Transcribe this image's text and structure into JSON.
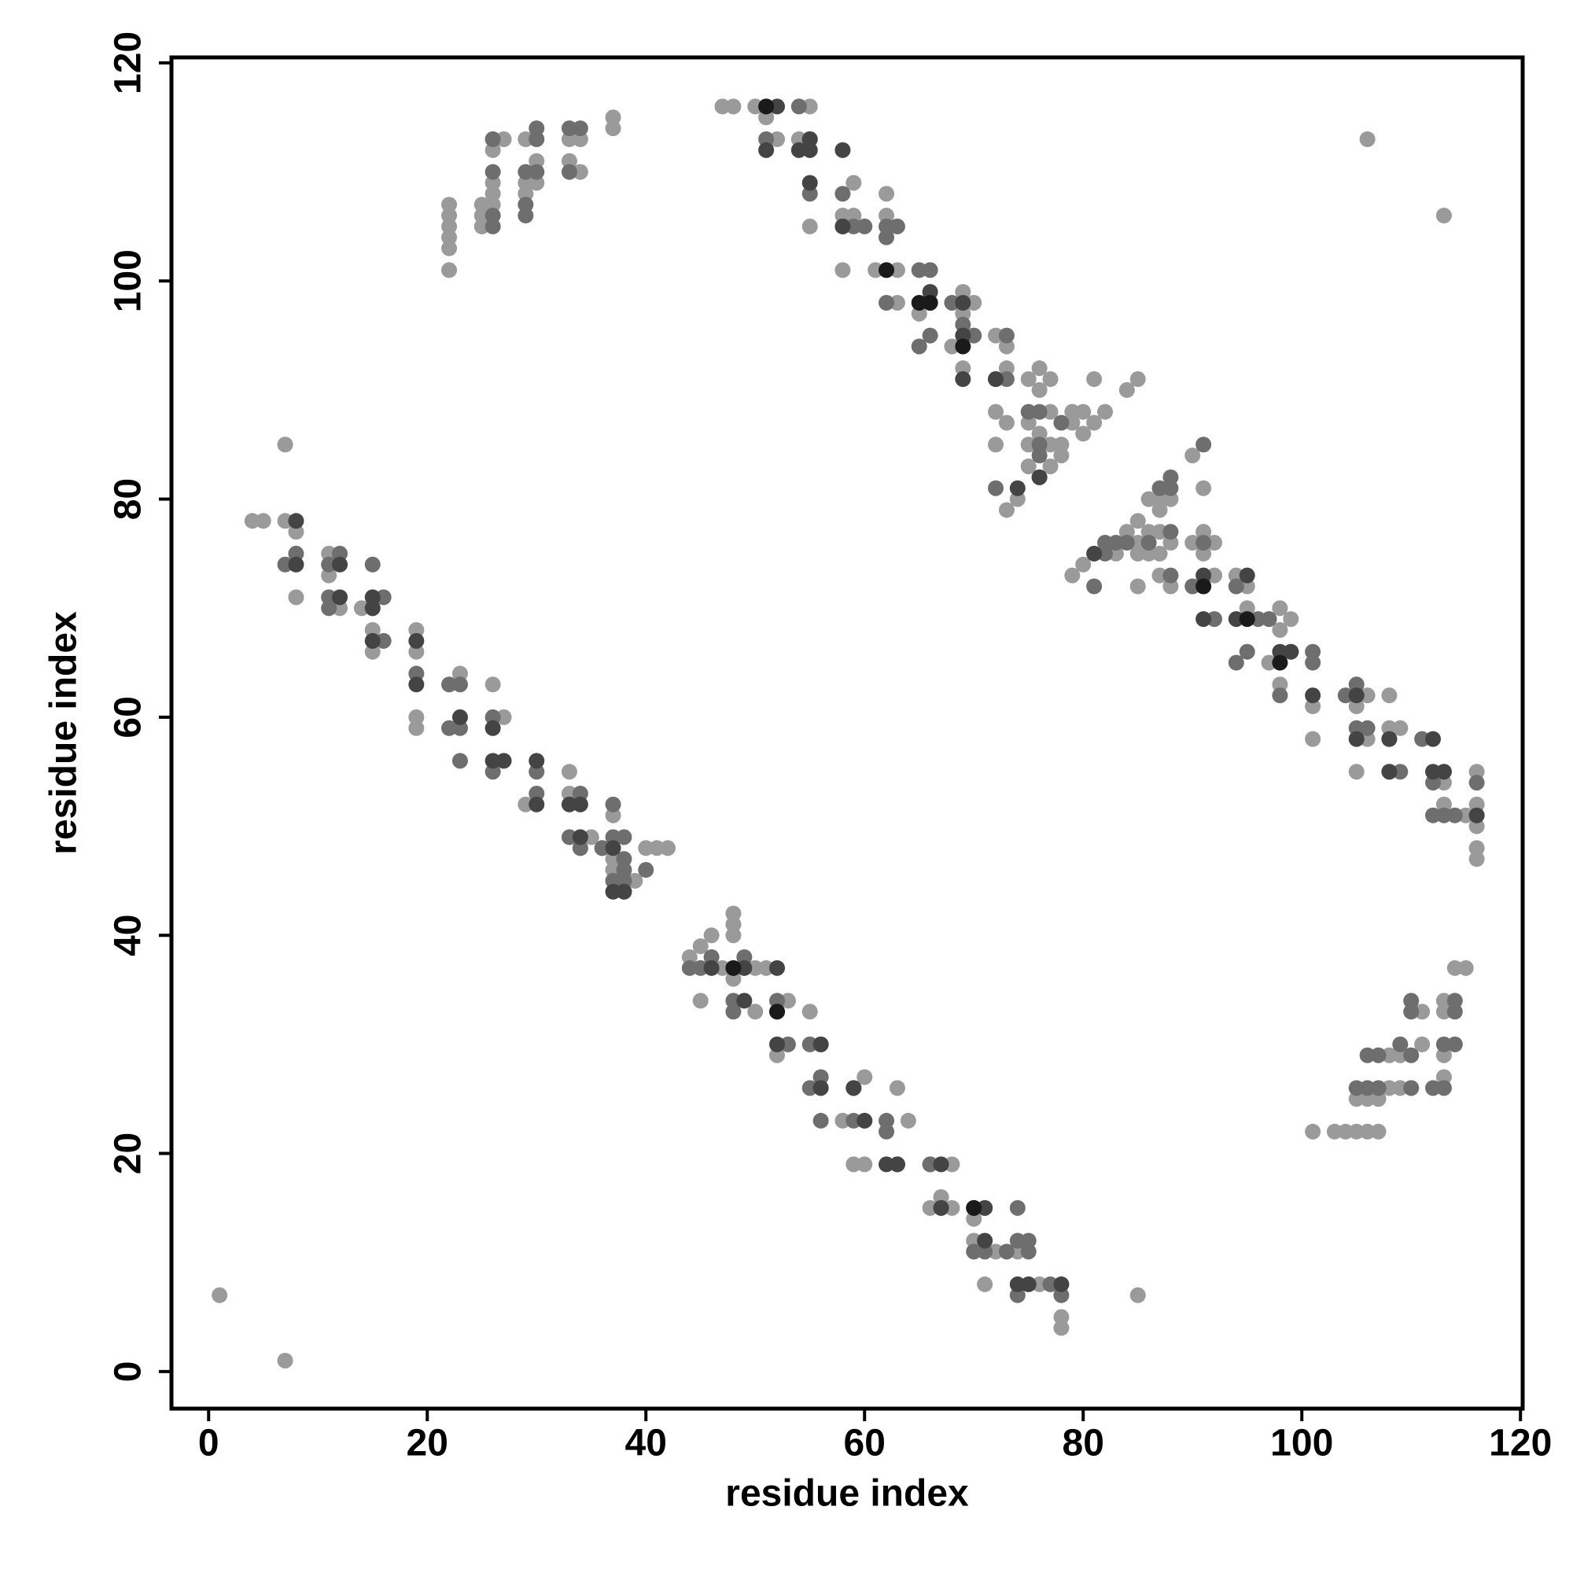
{
  "chart_data": {
    "type": "scatter",
    "xlabel": "residue index",
    "ylabel": "residue index",
    "xlim": [
      -3.4,
      120.2
    ],
    "ylim": [
      -3.4,
      120.5
    ],
    "xticks": [
      0,
      20,
      40,
      60,
      80,
      100,
      120
    ],
    "yticks": [
      0,
      20,
      40,
      60,
      80,
      100,
      120
    ],
    "series": [
      {
        "color": "#9a9a9a",
        "x": [
          4,
          5,
          7,
          7,
          8,
          8,
          11,
          11,
          12,
          14,
          19,
          19,
          19,
          19,
          23,
          26,
          27,
          29,
          33,
          33,
          34,
          35,
          36,
          37,
          37,
          37,
          38,
          39,
          40,
          41,
          42,
          15,
          15,
          22,
          22,
          22,
          22,
          22,
          22,
          25,
          25,
          25,
          26,
          26,
          26,
          26,
          27,
          29,
          29,
          29,
          30,
          30,
          33,
          33,
          34,
          34,
          37,
          37,
          26,
          47,
          48,
          50,
          51,
          52,
          54,
          55,
          55,
          58,
          58,
          59,
          59,
          61,
          62,
          62,
          63,
          63,
          65,
          66,
          68,
          69,
          69,
          69,
          70,
          72,
          72,
          72,
          73,
          73,
          73,
          73,
          74,
          75,
          75,
          75,
          75,
          76,
          76,
          76,
          77,
          77,
          77,
          77,
          78,
          78,
          79,
          79,
          80,
          80,
          81,
          81,
          82,
          84,
          79,
          80,
          83,
          84,
          85,
          85,
          85,
          85,
          86,
          86,
          86,
          87,
          87,
          87,
          87,
          87,
          88,
          88,
          88,
          90,
          90,
          91,
          91,
          91,
          91,
          92,
          92,
          94,
          94,
          95,
          95,
          97,
          97,
          98,
          98,
          98,
          99,
          101,
          101,
          105,
          105,
          106,
          106,
          108,
          108,
          109,
          113,
          113,
          113,
          116,
          116,
          116,
          116,
          116,
          115,
          106,
          113,
          85,
          44,
          45,
          46,
          47,
          48,
          48,
          48,
          48,
          50,
          50,
          51,
          53,
          55,
          56,
          58,
          60,
          60,
          59,
          63,
          64,
          66,
          66,
          67,
          68,
          68,
          70,
          70,
          71,
          72,
          74,
          76,
          78,
          78,
          85,
          1,
          7,
          45,
          52,
          101,
          103,
          104,
          105,
          106,
          107,
          105,
          106,
          107,
          108,
          108,
          109,
          109,
          110,
          111,
          113,
          113,
          113,
          114,
          115,
          111,
          113
        ],
        "values": [
          78,
          78,
          78,
          85,
          77,
          71,
          75,
          73,
          70,
          70,
          68,
          66,
          60,
          59,
          64,
          63,
          60,
          52,
          55,
          53,
          48,
          49,
          48,
          51,
          47,
          46,
          44,
          45,
          48,
          48,
          48,
          66,
          68,
          101,
          103,
          104,
          105,
          106,
          107,
          105,
          106,
          107,
          108,
          109,
          112,
          113,
          113,
          108,
          109,
          113,
          109,
          111,
          113,
          111,
          113,
          110,
          115,
          114,
          107,
          116,
          116,
          116,
          115,
          113,
          113,
          116,
          105,
          101,
          106,
          109,
          106,
          101,
          108,
          106,
          101,
          98,
          97,
          98,
          94,
          97,
          99,
          92,
          98,
          95,
          85,
          88,
          94,
          92,
          87,
          79,
          80,
          91,
          87,
          85,
          83,
          92,
          90,
          86,
          91,
          88,
          85,
          83,
          85,
          84,
          87,
          88,
          86,
          88,
          91,
          87,
          88,
          90,
          73,
          74,
          75,
          77,
          78,
          76,
          75,
          72,
          80,
          77,
          75,
          80,
          79,
          77,
          75,
          73,
          80,
          76,
          72,
          76,
          84,
          81,
          77,
          75,
          72,
          76,
          73,
          73,
          69,
          72,
          70,
          69,
          65,
          70,
          68,
          63,
          69,
          61,
          58,
          55,
          61,
          62,
          58,
          62,
          59,
          59,
          55,
          52,
          54,
          55,
          52,
          50,
          48,
          47,
          51,
          113,
          106,
          91,
          38,
          39,
          40,
          37,
          42,
          41,
          40,
          36,
          37,
          33,
          37,
          34,
          33,
          30,
          23,
          27,
          19,
          19,
          26,
          23,
          19,
          15,
          16,
          19,
          15,
          14,
          12,
          8,
          11,
          11,
          8,
          5,
          4,
          7,
          7,
          1,
          34,
          29,
          22,
          22,
          22,
          22,
          22,
          22,
          25,
          25,
          25,
          26,
          29,
          29,
          26,
          26,
          33,
          27,
          29,
          33,
          37,
          37,
          30,
          34
        ]
      },
      {
        "color": "#6e6e6e",
        "x": [
          7,
          8,
          11,
          11,
          11,
          12,
          15,
          15,
          16,
          16,
          19,
          22,
          23,
          22,
          23,
          23,
          26,
          26,
          30,
          30,
          33,
          34,
          34,
          37,
          37,
          38,
          38,
          37,
          38,
          40,
          36,
          38,
          26,
          26,
          26,
          26,
          29,
          29,
          29,
          30,
          30,
          30,
          33,
          33,
          34,
          51,
          51,
          54,
          55,
          55,
          58,
          58,
          59,
          60,
          62,
          62,
          62,
          63,
          65,
          65,
          66,
          66,
          68,
          69,
          70,
          72,
          72,
          73,
          73,
          75,
          76,
          76,
          76,
          76,
          78,
          82,
          82,
          83,
          84,
          86,
          88,
          88,
          88,
          91,
          90,
          91,
          92,
          94,
          94,
          95,
          96,
          97,
          98,
          99,
          101,
          101,
          104,
          105,
          105,
          106,
          108,
          108,
          109,
          111,
          112,
          112,
          113,
          114,
          116,
          116,
          87,
          88,
          81,
          44,
          45,
          46,
          48,
          48,
          49,
          52,
          53,
          55,
          55,
          56,
          56,
          59,
          59,
          60,
          62,
          62,
          63,
          66,
          67,
          70,
          71,
          71,
          73,
          74,
          74,
          74,
          75,
          75,
          77,
          78,
          105,
          106,
          106,
          107,
          107,
          109,
          110,
          110,
          110,
          112,
          113,
          113,
          114,
          114,
          114,
          110
        ],
        "values": [
          74,
          75,
          74,
          71,
          70,
          75,
          74,
          70,
          71,
          67,
          64,
          63,
          63,
          59,
          59,
          56,
          60,
          55,
          55,
          53,
          49,
          53,
          48,
          52,
          49,
          49,
          46,
          45,
          45,
          46,
          48,
          47,
          105,
          106,
          110,
          113,
          106,
          107,
          110,
          110,
          113,
          114,
          114,
          110,
          114,
          116,
          113,
          116,
          113,
          108,
          108,
          105,
          105,
          105,
          105,
          104,
          98,
          105,
          101,
          94,
          101,
          95,
          98,
          96,
          95,
          91,
          81,
          95,
          91,
          88,
          88,
          85,
          84,
          82,
          87,
          75,
          76,
          76,
          76,
          76,
          81,
          77,
          73,
          85,
          72,
          76,
          69,
          72,
          65,
          66,
          69,
          69,
          62,
          66,
          66,
          65,
          62,
          63,
          59,
          59,
          55,
          58,
          55,
          58,
          54,
          51,
          51,
          51,
          54,
          51,
          81,
          82,
          72,
          37,
          37,
          38,
          34,
          33,
          38,
          34,
          30,
          30,
          26,
          27,
          23,
          23,
          26,
          23,
          23,
          22,
          19,
          19,
          15,
          11,
          15,
          11,
          11,
          15,
          12,
          7,
          12,
          11,
          8,
          7,
          26,
          26,
          29,
          26,
          29,
          30,
          29,
          33,
          34,
          26,
          26,
          30,
          30,
          33,
          34,
          26
        ]
      },
      {
        "color": "#444444",
        "x": [
          8,
          8,
          12,
          12,
          15,
          15,
          15,
          19,
          19,
          23,
          26,
          26,
          27,
          30,
          30,
          33,
          34,
          34,
          37,
          37,
          38,
          51,
          52,
          54,
          55,
          55,
          55,
          58,
          58,
          66,
          69,
          69,
          69,
          72,
          74,
          76,
          81,
          91,
          91,
          94,
          95,
          98,
          99,
          101,
          105,
          105,
          108,
          112,
          112,
          113,
          116,
          108,
          46,
          48,
          49,
          49,
          52,
          52,
          52,
          56,
          56,
          59,
          60,
          62,
          63,
          67,
          67,
          70,
          71,
          71,
          74,
          75,
          78
        ],
        "values": [
          74,
          78,
          74,
          71,
          71,
          70,
          67,
          67,
          63,
          60,
          59,
          56,
          56,
          56,
          52,
          52,
          52,
          49,
          48,
          44,
          44,
          112,
          116,
          112,
          112,
          113,
          109,
          112,
          105,
          99,
          98,
          95,
          91,
          91,
          81,
          82,
          75,
          73,
          69,
          69,
          73,
          66,
          66,
          62,
          62,
          58,
          58,
          58,
          55,
          55,
          51,
          55,
          37,
          37,
          37,
          34,
          37,
          33,
          30,
          30,
          26,
          26,
          23,
          19,
          19,
          19,
          15,
          15,
          15,
          12,
          8,
          8,
          8
        ]
      },
      {
        "color": "#1a1a1a",
        "x": [
          51,
          62,
          65,
          66,
          69,
          91,
          95,
          98,
          48,
          52,
          70
        ],
        "values": [
          116,
          101,
          98,
          98,
          94,
          72,
          69,
          65,
          37,
          33,
          15
        ]
      }
    ]
  }
}
